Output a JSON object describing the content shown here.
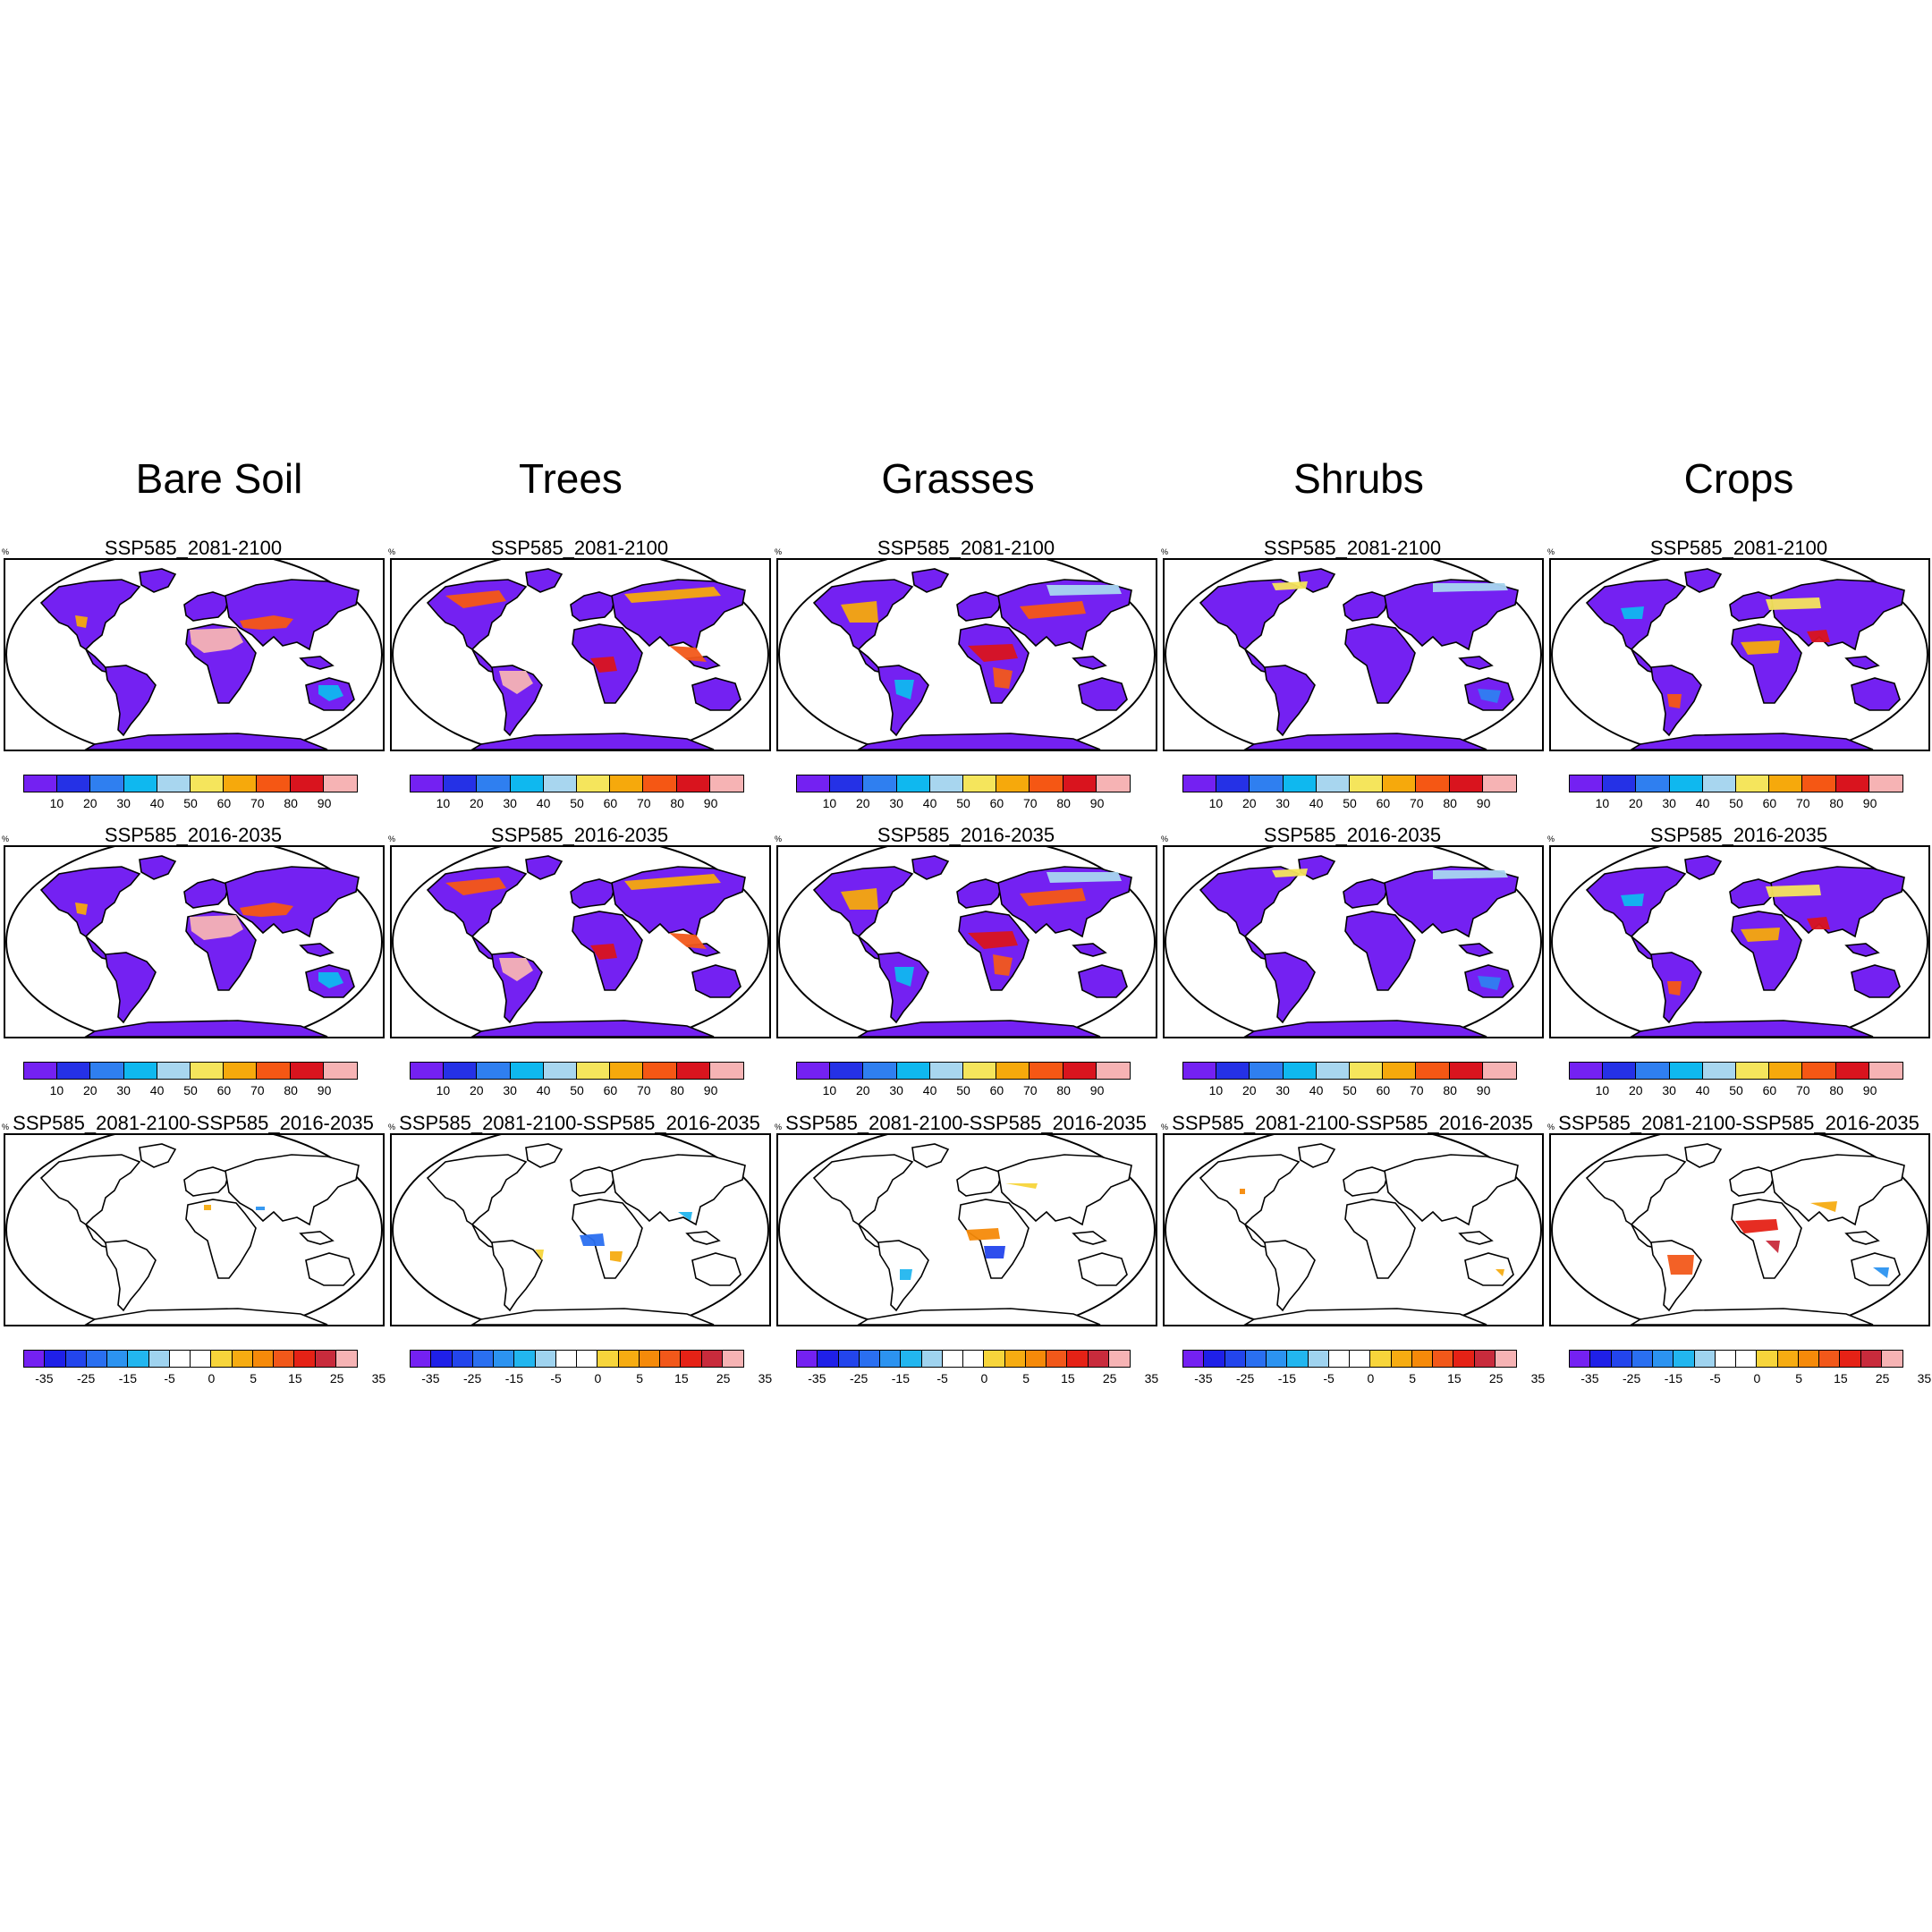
{
  "columns": [
    {
      "title": "Bare Soil"
    },
    {
      "title": "Trees"
    },
    {
      "title": "Grasses"
    },
    {
      "title": "Shrubs"
    },
    {
      "title": "Crops"
    }
  ],
  "rows": [
    {
      "panel_title": "SSP585_2081-2100",
      "kind": "abs"
    },
    {
      "panel_title": "SSP585_2016-2035",
      "kind": "abs"
    },
    {
      "panel_title": "SSP585_2081-2100-SSP585_2016-2035",
      "kind": "diff"
    }
  ],
  "unit_label": "%",
  "colorbars": {
    "abs": {
      "colors": [
        "#7421f2",
        "#2531e6",
        "#2f7ff0",
        "#0fb8ef",
        "#a8d6ef",
        "#f5e55c",
        "#f6a90c",
        "#f55714",
        "#d9141e",
        "#f6b3b4"
      ],
      "tick_labels": [
        "10",
        "20",
        "30",
        "40",
        "50",
        "60",
        "70",
        "80",
        "90"
      ]
    },
    "diff": {
      "colors": [
        "#7421f2",
        "#1f20e8",
        "#2345ec",
        "#2a6ff0",
        "#2c93f0",
        "#22b6ef",
        "#9fd3ef",
        "#ffffff",
        "#ffffff",
        "#f7d53b",
        "#f6ac12",
        "#f58a0a",
        "#f2581a",
        "#e52216",
        "#c82b3c",
        "#f6b3b4"
      ],
      "tick_labels": [
        "-35",
        "-25",
        "-15",
        "-5",
        "0",
        "5",
        "15",
        "25",
        "35"
      ]
    }
  },
  "chart_data": {
    "type": "heatmap",
    "description_levels": "land-cover fraction maps, 5 variables x 3 periods",
    "variables": [
      "Bare Soil",
      "Trees",
      "Grasses",
      "Shrubs",
      "Crops"
    ],
    "periods": [
      "SSP585_2081-2100",
      "SSP585_2016-2035",
      "SSP585_2081-2100-SSP585_2016-2035"
    ],
    "abs_levels": [
      10,
      20,
      30,
      40,
      50,
      60,
      70,
      80,
      90
    ],
    "diff_levels": [
      -35,
      -30,
      -25,
      -20,
      -15,
      -10,
      -5,
      0,
      5,
      10,
      15,
      20,
      25,
      30,
      35
    ]
  }
}
